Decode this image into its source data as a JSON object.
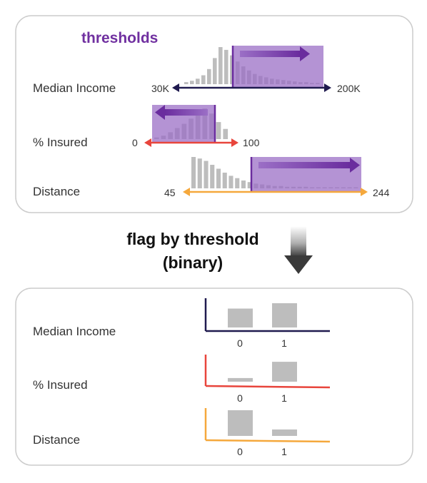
{
  "top_panel": {
    "title": "thresholds",
    "title_color": "#7030a0",
    "rows": [
      {
        "label": "Median Income",
        "min_label": "30K",
        "max_label": "200K",
        "axis_color": "#1f1a4f",
        "direction": "right",
        "histogram": [
          3,
          5,
          8,
          13,
          22,
          38,
          54,
          50,
          42,
          33,
          26,
          20,
          15,
          12,
          10,
          8,
          7,
          6,
          5,
          4,
          3,
          3,
          2,
          2
        ]
      },
      {
        "label": "% Insured",
        "min_label": "0",
        "max_label": "100",
        "axis_color": "#e8453c",
        "direction": "left",
        "histogram": [
          2,
          4,
          8,
          13,
          18,
          24,
          30,
          36,
          30,
          20,
          12
        ]
      },
      {
        "label": "Distance",
        "min_label": "45",
        "max_label": "244",
        "axis_color": "#f5a83c",
        "direction": "right",
        "histogram": [
          40,
          38,
          35,
          30,
          25,
          20,
          16,
          13,
          10,
          8,
          6,
          5,
          4,
          3,
          3,
          2,
          2,
          2,
          2,
          1,
          1,
          1,
          1,
          1,
          1,
          1,
          1
        ]
      }
    ]
  },
  "transition": {
    "line1": "flag by threshold",
    "line2": "(binary)",
    "icon": "down-arrow-icon"
  },
  "bottom_panel": {
    "rows": [
      {
        "label": "Median Income",
        "axis_color": "#1f1a4f",
        "categories": [
          "0",
          "1"
        ],
        "values": [
          0.78,
          1.0
        ]
      },
      {
        "label": "% Insured",
        "axis_color": "#e8453c",
        "categories": [
          "0",
          "1"
        ],
        "values": [
          0.17,
          0.93
        ]
      },
      {
        "label": "Distance",
        "axis_color": "#f5a83c",
        "categories": [
          "0",
          "1"
        ],
        "values": [
          1.0,
          0.25
        ]
      }
    ]
  },
  "colors": {
    "highlight_fill": "#9b6fc6",
    "highlight_border": "#7030a0",
    "bar_gray": "#bdbdbd",
    "panel_border": "#cccccc"
  }
}
